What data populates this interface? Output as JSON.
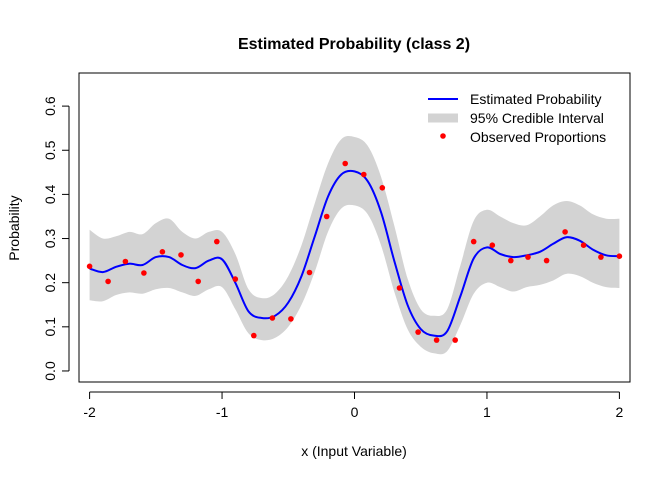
{
  "chart_data": {
    "type": "line",
    "title": "Estimated Probability (class 2)",
    "xlabel": "x (Input Variable)",
    "ylabel": "Probability",
    "xlim": [
      -2.08,
      2.08
    ],
    "ylim": [
      -0.025,
      0.675
    ],
    "x_ticks": [
      -2,
      -1,
      0,
      1,
      2
    ],
    "x_tick_labels": [
      "-2",
      "-1",
      "0",
      "1",
      "2"
    ],
    "y_ticks": [
      0.0,
      0.1,
      0.2,
      0.3,
      0.4,
      0.5,
      0.6
    ],
    "y_tick_labels": [
      "0.0",
      "0.1",
      "0.2",
      "0.3",
      "0.4",
      "0.5",
      "0.6"
    ],
    "grid": false,
    "legend_position": "top-right",
    "legend": [
      "Estimated Probability",
      "95% Credible Interval",
      "Observed Proportions"
    ],
    "colors": {
      "estimate": "#0000ff",
      "interval": "#d3d3d3",
      "observed": "#ff0000",
      "axis": "#000000"
    },
    "estimate": {
      "x": [
        -2.0,
        -1.9,
        -1.8,
        -1.7,
        -1.6,
        -1.5,
        -1.4,
        -1.3,
        -1.2,
        -1.1,
        -1.0,
        -0.9,
        -0.8,
        -0.7,
        -0.6,
        -0.5,
        -0.4,
        -0.3,
        -0.2,
        -0.1,
        0.0,
        0.1,
        0.2,
        0.3,
        0.4,
        0.5,
        0.6,
        0.7,
        0.8,
        0.9,
        1.0,
        1.1,
        1.2,
        1.3,
        1.4,
        1.5,
        1.6,
        1.7,
        1.8,
        1.9,
        2.0
      ],
      "y": [
        0.232,
        0.224,
        0.236,
        0.243,
        0.24,
        0.258,
        0.258,
        0.24,
        0.233,
        0.25,
        0.253,
        0.2,
        0.135,
        0.12,
        0.125,
        0.155,
        0.215,
        0.305,
        0.395,
        0.445,
        0.452,
        0.43,
        0.36,
        0.25,
        0.15,
        0.095,
        0.08,
        0.09,
        0.17,
        0.255,
        0.28,
        0.265,
        0.258,
        0.262,
        0.27,
        0.288,
        0.303,
        0.295,
        0.275,
        0.262,
        0.26
      ]
    },
    "interval": {
      "x": [
        -2.0,
        -1.9,
        -1.8,
        -1.7,
        -1.6,
        -1.5,
        -1.4,
        -1.3,
        -1.2,
        -1.1,
        -1.0,
        -0.9,
        -0.8,
        -0.7,
        -0.6,
        -0.5,
        -0.4,
        -0.3,
        -0.2,
        -0.1,
        0.0,
        0.1,
        0.2,
        0.3,
        0.4,
        0.5,
        0.6,
        0.7,
        0.8,
        0.9,
        1.0,
        1.1,
        1.2,
        1.3,
        1.4,
        1.5,
        1.6,
        1.7,
        1.8,
        1.9,
        2.0
      ],
      "upper": [
        0.32,
        0.3,
        0.305,
        0.315,
        0.31,
        0.335,
        0.345,
        0.315,
        0.3,
        0.315,
        0.315,
        0.265,
        0.185,
        0.165,
        0.175,
        0.215,
        0.285,
        0.38,
        0.47,
        0.525,
        0.53,
        0.51,
        0.44,
        0.33,
        0.21,
        0.14,
        0.125,
        0.14,
        0.24,
        0.34,
        0.365,
        0.35,
        0.335,
        0.33,
        0.35,
        0.375,
        0.385,
        0.375,
        0.355,
        0.345,
        0.345
      ],
      "lower": [
        0.16,
        0.158,
        0.172,
        0.178,
        0.175,
        0.185,
        0.188,
        0.178,
        0.17,
        0.185,
        0.19,
        0.14,
        0.085,
        0.07,
        0.075,
        0.1,
        0.15,
        0.225,
        0.315,
        0.368,
        0.375,
        0.355,
        0.285,
        0.18,
        0.095,
        0.055,
        0.04,
        0.045,
        0.105,
        0.175,
        0.2,
        0.19,
        0.18,
        0.19,
        0.195,
        0.205,
        0.22,
        0.215,
        0.2,
        0.19,
        0.188
      ]
    },
    "observed": {
      "x": [
        -2.0,
        -1.86,
        -1.73,
        -1.59,
        -1.45,
        -1.31,
        -1.18,
        -1.04,
        -0.9,
        -0.76,
        -0.62,
        -0.48,
        -0.34,
        -0.21,
        -0.07,
        0.07,
        0.21,
        0.34,
        0.48,
        0.62,
        0.76,
        0.9,
        1.04,
        1.18,
        1.31,
        1.45,
        1.59,
        1.73,
        1.86,
        2.0
      ],
      "y": [
        0.237,
        0.203,
        0.248,
        0.222,
        0.27,
        0.263,
        0.203,
        0.293,
        0.208,
        0.08,
        0.12,
        0.118,
        0.223,
        0.35,
        0.47,
        0.445,
        0.415,
        0.188,
        0.088,
        0.07,
        0.07,
        0.293,
        0.285,
        0.25,
        0.258,
        0.25,
        0.315,
        0.285,
        0.258,
        0.26
      ]
    }
  }
}
